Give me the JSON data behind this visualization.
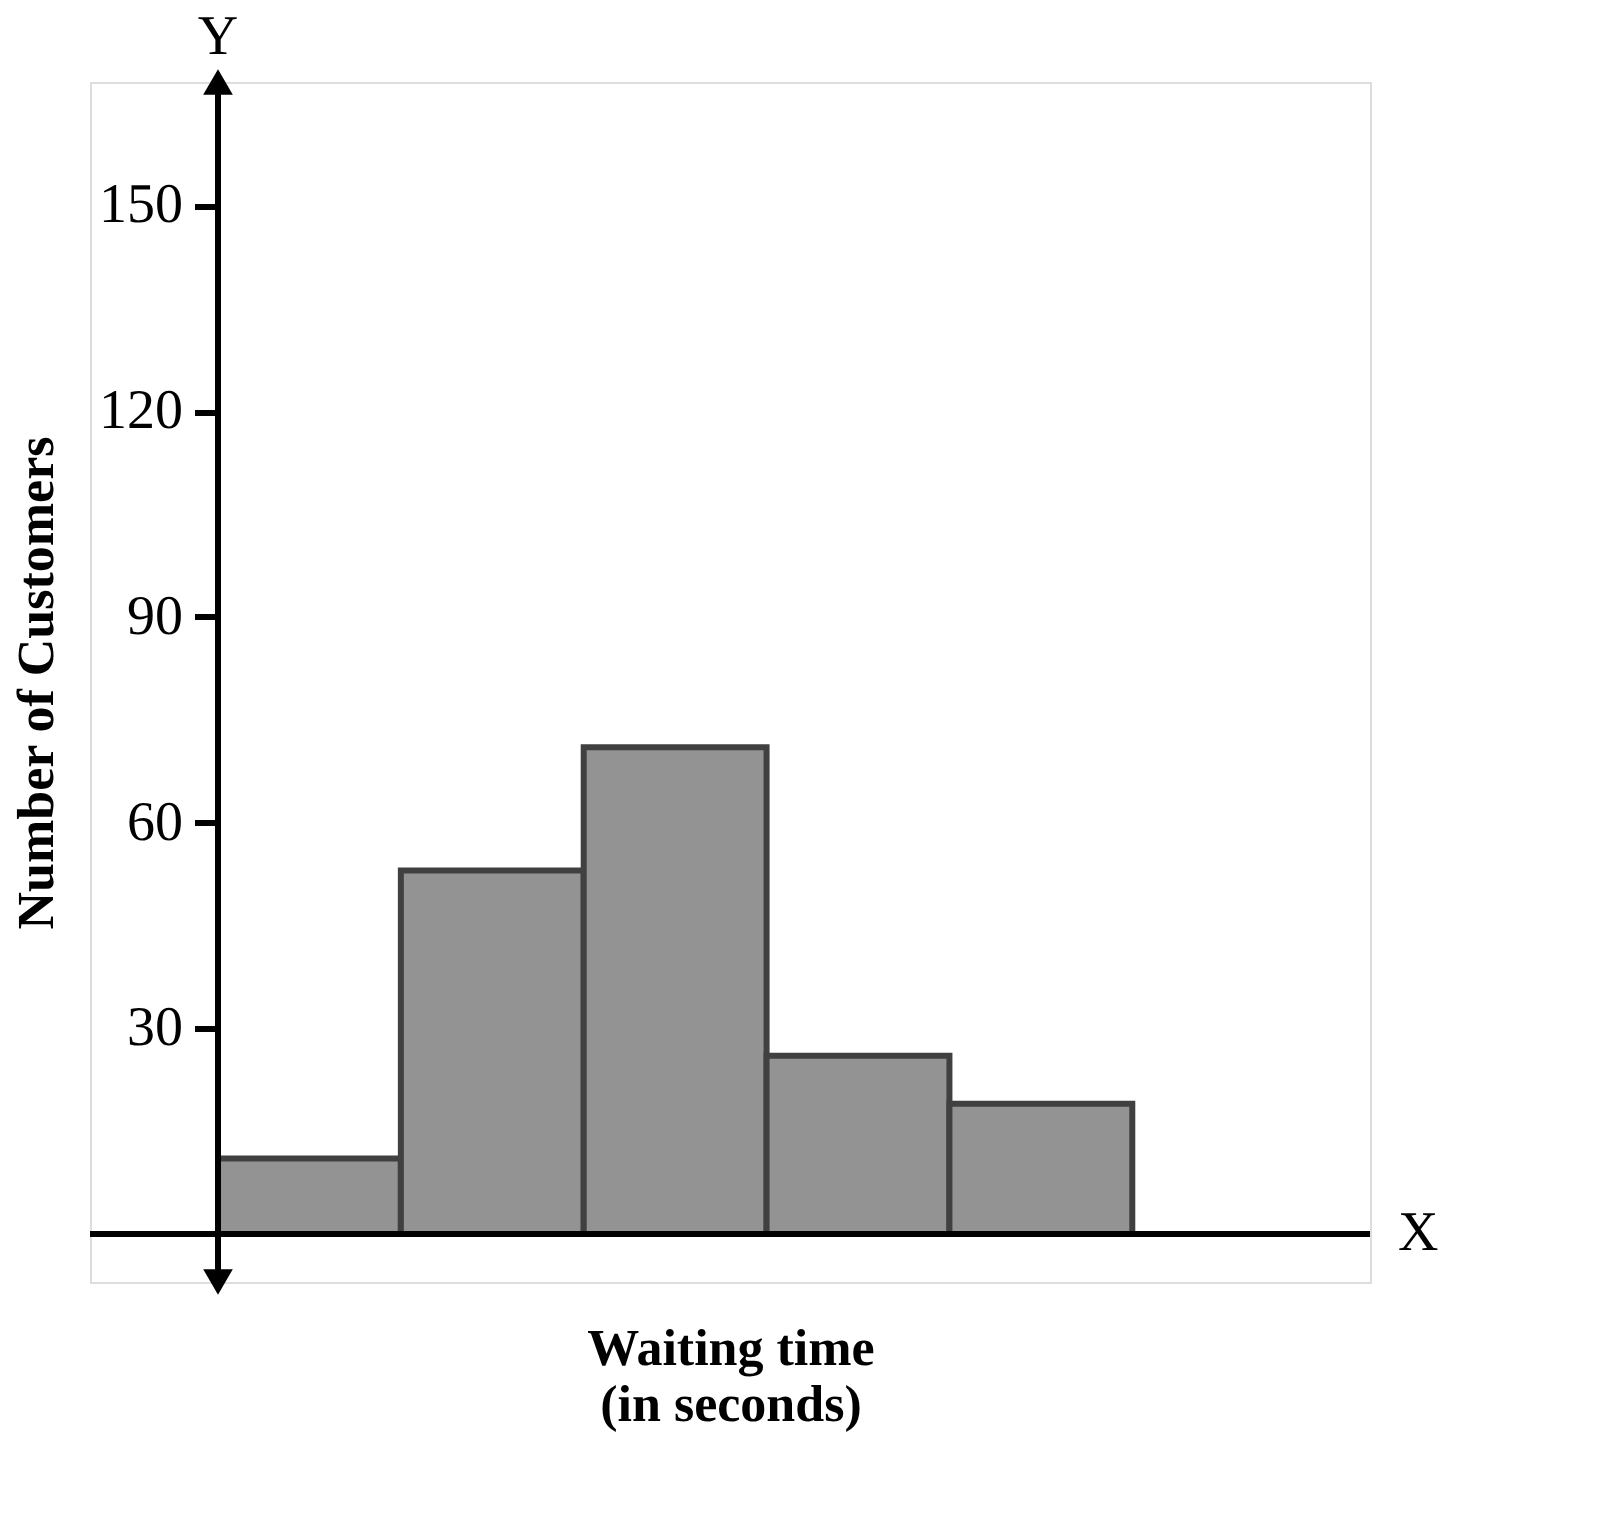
{
  "chart_data": {
    "type": "bar",
    "categories": [
      null,
      null,
      null,
      null,
      null
    ],
    "values": [
      11,
      53,
      71,
      26,
      19
    ],
    "color": "#939393",
    "ylim": [
      -7,
      168
    ],
    "yticks": [
      30,
      60,
      90,
      120,
      150
    ],
    "xlabel": "Waiting time\n(in seconds)",
    "ylabel": "Number of Customers",
    "annotations": [
      "Y",
      "X"
    ],
    "tick_labels": "y",
    "grid": false
  }
}
